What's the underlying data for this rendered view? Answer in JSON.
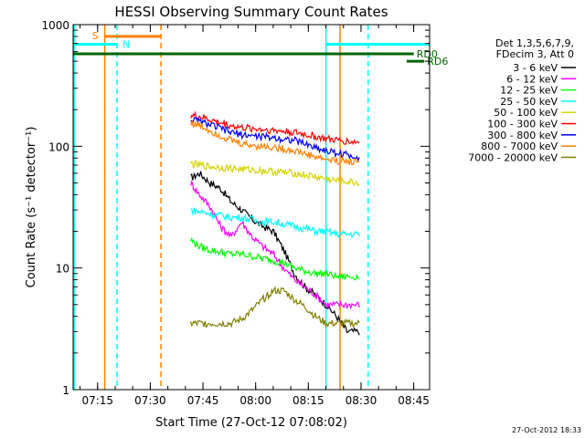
{
  "chart_data": {
    "type": "line",
    "title": "HESSI Observing Summary Count Rates",
    "xlabel": "Start Time (27-Oct-12 07:08:02)",
    "ylabel": "Count Rate (s⁻¹ detector⁻¹)",
    "yscale": "log",
    "ylim": [
      1,
      1000
    ],
    "xlim_minutes": [
      0,
      101.5
    ],
    "x_ticks": [
      {
        "label": "07:15",
        "t": 6.97
      },
      {
        "label": "07:30",
        "t": 21.97
      },
      {
        "label": "07:45",
        "t": 36.97
      },
      {
        "label": "08:00",
        "t": 51.97
      },
      {
        "label": "08:15",
        "t": 66.97
      },
      {
        "label": "08:30",
        "t": 81.97
      },
      {
        "label": "08:45",
        "t": 96.97
      }
    ],
    "y_ticks": [
      {
        "label": "1",
        "v": 1
      },
      {
        "label": "10",
        "v": 10
      },
      {
        "label": "100",
        "v": 100
      },
      {
        "label": "1000",
        "v": 1000
      }
    ],
    "legend_header": [
      "Det 1,3,5,6,7,9,",
      "FDecim 3, Att 0"
    ],
    "series": [
      {
        "name": "3 - 6 keV",
        "color": "#000000",
        "t": [
          33.5,
          36,
          39,
          42,
          45,
          48,
          51,
          54,
          57,
          60,
          63,
          66,
          69,
          72,
          75,
          78,
          81.5
        ],
        "values": [
          55,
          60,
          50,
          45,
          35,
          30,
          25,
          22,
          20,
          14,
          9,
          7,
          6,
          5,
          4,
          3,
          3
        ]
      },
      {
        "name": "6 - 12 keV",
        "color": "#ff00ff",
        "t": [
          33.5,
          36,
          39,
          42,
          45,
          48,
          51,
          54,
          57,
          60,
          63,
          66,
          69,
          72,
          75,
          78,
          81.5
        ],
        "values": [
          50,
          40,
          32,
          22,
          18,
          24,
          18,
          15,
          13,
          10,
          8,
          7,
          6,
          5,
          5,
          5,
          5
        ]
      },
      {
        "name": "12 - 25 keV",
        "color": "#00ff00",
        "t": [
          33.5,
          36,
          39,
          42,
          45,
          48,
          51,
          54,
          57,
          60,
          63,
          66,
          69,
          72,
          75,
          78,
          81.5
        ],
        "values": [
          17,
          15,
          14,
          13.5,
          13,
          13,
          12.5,
          12,
          11.5,
          11,
          10,
          9.5,
          9,
          9,
          8.5,
          8.5,
          8.5
        ]
      },
      {
        "name": "25 - 50 keV",
        "color": "#00ffff",
        "t": [
          33.5,
          36,
          39,
          42,
          45,
          48,
          51,
          54,
          57,
          60,
          63,
          66,
          69,
          72,
          75,
          78,
          81.5
        ],
        "values": [
          30,
          29,
          28,
          27,
          26,
          26,
          25,
          24,
          24,
          23,
          22,
          21,
          20,
          20,
          19,
          19,
          19
        ]
      },
      {
        "name": "50 - 100 keV",
        "color": "#d4d400",
        "t": [
          33.5,
          36,
          39,
          42,
          45,
          48,
          51,
          54,
          57,
          60,
          63,
          66,
          69,
          72,
          75,
          78,
          81.5
        ],
        "values": [
          72,
          70,
          68,
          67,
          66,
          65,
          64,
          63,
          62,
          61,
          60,
          58,
          56,
          54,
          52,
          51,
          50
        ]
      },
      {
        "name": "100 - 300 keV",
        "color": "#ff0000",
        "t": [
          33.5,
          36,
          39,
          42,
          45,
          48,
          51,
          54,
          57,
          60,
          63,
          66,
          69,
          72,
          75,
          78,
          81.5
        ],
        "values": [
          180,
          175,
          165,
          155,
          148,
          142,
          140,
          138,
          135,
          133,
          130,
          125,
          120,
          115,
          112,
          110,
          108
        ]
      },
      {
        "name": "300 - 800 keV",
        "color": "#0000ff",
        "t": [
          33.5,
          36,
          39,
          42,
          45,
          48,
          51,
          54,
          57,
          60,
          63,
          66,
          69,
          72,
          75,
          78,
          81.5
        ],
        "values": [
          165,
          160,
          150,
          140,
          130,
          125,
          122,
          120,
          118,
          115,
          112,
          105,
          98,
          92,
          88,
          85,
          82
        ]
      },
      {
        "name": "800 - 7000 keV",
        "color": "#ff8000",
        "t": [
          33.5,
          36,
          39,
          42,
          45,
          48,
          51,
          54,
          57,
          60,
          63,
          66,
          69,
          72,
          75,
          78,
          81.5
        ],
        "values": [
          155,
          148,
          135,
          122,
          112,
          105,
          102,
          100,
          98,
          95,
          92,
          87,
          82,
          78,
          76,
          75,
          75
        ]
      },
      {
        "name": "7000 - 20000 keV",
        "color": "#808000",
        "t": [
          33.5,
          36,
          39,
          42,
          45,
          48,
          51,
          54,
          57,
          60,
          63,
          66,
          69,
          72,
          75,
          78,
          81.5
        ],
        "values": [
          3.5,
          3.5,
          3.5,
          3.5,
          3.5,
          3.8,
          4.5,
          5.5,
          6.5,
          6.5,
          5.5,
          4.8,
          4,
          3.5,
          3.5,
          3.5,
          3.5
        ]
      }
    ],
    "state_bars": [
      {
        "label": "S",
        "color": "#ff8000",
        "t0": 9,
        "t1": 25,
        "v": 800
      },
      {
        "label": "N",
        "color": "#00ffff",
        "t0": 0,
        "t1": 12.5,
        "v": 690
      },
      {
        "label": "",
        "color": "#00ffff",
        "t0": 72,
        "t1": 101.5,
        "v": 690
      },
      {
        "label": "RD0",
        "color": "#006400",
        "t0": 0,
        "t1": 97,
        "v": 575
      },
      {
        "label": "RD6",
        "color": "#006400",
        "t0": 95,
        "t1": 100,
        "v": 500
      }
    ],
    "vertical_markers": [
      {
        "t": 0.3,
        "color": "#00ffff",
        "style": "solid"
      },
      {
        "t": 9,
        "color": "#ff8000",
        "style": "solid"
      },
      {
        "t": 12.5,
        "color": "#00ffff",
        "style": "dashed"
      },
      {
        "t": 25,
        "color": "#ff8000",
        "style": "dashed"
      },
      {
        "t": 72,
        "color": "#00ffff",
        "style": "solid"
      },
      {
        "t": 76,
        "color": "#ff8000",
        "style": "solid"
      },
      {
        "t": 84,
        "color": "#00ffff",
        "style": "dashed"
      }
    ]
  },
  "footer": {
    "timestamp": "27-Oct-2012 18:33"
  }
}
